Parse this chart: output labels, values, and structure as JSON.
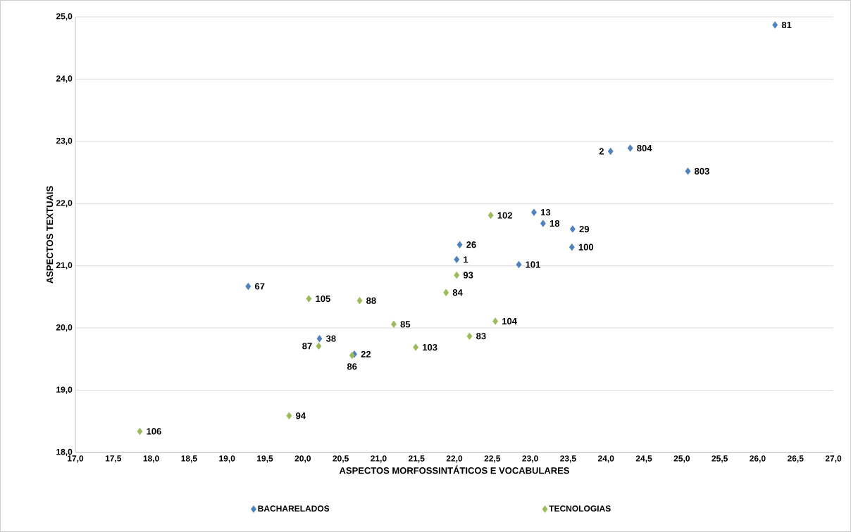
{
  "chart_data": {
    "type": "scatter",
    "xlabel": "ASPECTOS MORFOSSINTÁTICOS E VOCABULARES",
    "ylabel": "ASPECTOS TEXTUAIS",
    "xlim": [
      17,
      27
    ],
    "ylim": [
      18,
      25
    ],
    "xticks": [
      {
        "value": 17,
        "label": "17,0"
      },
      {
        "value": 17.5,
        "label": "17,5"
      },
      {
        "value": 18,
        "label": "18,0"
      },
      {
        "value": 18.5,
        "label": "18,5"
      },
      {
        "value": 19,
        "label": "19,0"
      },
      {
        "value": 19.5,
        "label": "19,5"
      },
      {
        "value": 20,
        "label": "20,0"
      },
      {
        "value": 20.5,
        "label": "20,5"
      },
      {
        "value": 21,
        "label": "21,0"
      },
      {
        "value": 21.5,
        "label": "21,5"
      },
      {
        "value": 22,
        "label": "22,0"
      },
      {
        "value": 22.5,
        "label": "22,5"
      },
      {
        "value": 23,
        "label": "23,0"
      },
      {
        "value": 23.5,
        "label": "23,5"
      },
      {
        "value": 24,
        "label": "24,0"
      },
      {
        "value": 24.5,
        "label": "24,5"
      },
      {
        "value": 25,
        "label": "25,0"
      },
      {
        "value": 25.5,
        "label": "25,5"
      },
      {
        "value": 26,
        "label": "26,0"
      },
      {
        "value": 26.5,
        "label": "26,5"
      },
      {
        "value": 27,
        "label": "27,0"
      }
    ],
    "yticks": [
      {
        "value": 18,
        "label": "18,0"
      },
      {
        "value": 19,
        "label": "19,0"
      },
      {
        "value": 20,
        "label": "20,0"
      },
      {
        "value": 21,
        "label": "21,0"
      },
      {
        "value": 22,
        "label": "22,0"
      },
      {
        "value": 23,
        "label": "23,0"
      },
      {
        "value": 24,
        "label": "24,0"
      },
      {
        "value": 25,
        "label": "25,0"
      }
    ],
    "grid": "y",
    "legend": "bottom",
    "marker": "diamond",
    "series": [
      {
        "name": "BACHARELADOS",
        "color": "#4f81bd",
        "x": [
          26.23,
          24.06,
          24.32,
          25.08,
          23.05,
          23.17,
          23.56,
          22.07,
          23.55,
          22.03,
          22.85,
          19.28,
          20.22,
          20.68
        ],
        "values": [
          24.87,
          22.84,
          22.89,
          22.52,
          21.86,
          21.68,
          21.59,
          21.34,
          21.3,
          21.1,
          21.02,
          20.67,
          19.83,
          19.58
        ]
      },
      {
        "name": "TECNOLOGIAS",
        "color": "#9bbb59",
        "x": [
          22.48,
          22.03,
          21.89,
          20.08,
          20.75,
          21.2,
          22.54,
          22.2,
          20.21,
          21.49,
          20.65,
          19.82,
          17.85
        ],
        "values": [
          21.81,
          20.85,
          20.57,
          20.47,
          20.44,
          20.06,
          20.11,
          19.87,
          19.71,
          19.69,
          19.56,
          18.59,
          18.34
        ]
      }
    ],
    "annotations": [
      {
        "text": "81",
        "x": 26.23,
        "y": 24.87
      },
      {
        "text": "2",
        "x": 24.06,
        "y": 22.84
      },
      {
        "text": "804",
        "x": 24.32,
        "y": 22.89
      },
      {
        "text": "803",
        "x": 25.08,
        "y": 22.52
      },
      {
        "text": "13",
        "x": 23.05,
        "y": 21.86
      },
      {
        "text": "18",
        "x": 23.17,
        "y": 21.68
      },
      {
        "text": "29",
        "x": 23.56,
        "y": 21.59
      },
      {
        "text": "26",
        "x": 22.07,
        "y": 21.34
      },
      {
        "text": "100",
        "x": 23.55,
        "y": 21.3
      },
      {
        "text": "1",
        "x": 22.03,
        "y": 21.1
      },
      {
        "text": "101",
        "x": 22.85,
        "y": 21.02
      },
      {
        "text": "67",
        "x": 19.28,
        "y": 20.67
      },
      {
        "text": "38",
        "x": 20.22,
        "y": 19.83
      },
      {
        "text": "22",
        "x": 20.68,
        "y": 19.58
      },
      {
        "text": "102",
        "x": 22.48,
        "y": 21.81
      },
      {
        "text": "93",
        "x": 22.03,
        "y": 20.85
      },
      {
        "text": "84",
        "x": 21.89,
        "y": 20.57
      },
      {
        "text": "105",
        "x": 20.08,
        "y": 20.47
      },
      {
        "text": "88",
        "x": 20.75,
        "y": 20.44
      },
      {
        "text": "85",
        "x": 21.2,
        "y": 20.06
      },
      {
        "text": "104",
        "x": 22.54,
        "y": 20.11
      },
      {
        "text": "83",
        "x": 22.2,
        "y": 19.87
      },
      {
        "text": "87",
        "x": 20.21,
        "y": 19.71
      },
      {
        "text": "103",
        "x": 21.49,
        "y": 19.69
      },
      {
        "text": "86",
        "x": 20.65,
        "y": 19.56
      },
      {
        "text": "94",
        "x": 19.82,
        "y": 18.59
      },
      {
        "text": "106",
        "x": 17.85,
        "y": 18.34
      }
    ]
  }
}
